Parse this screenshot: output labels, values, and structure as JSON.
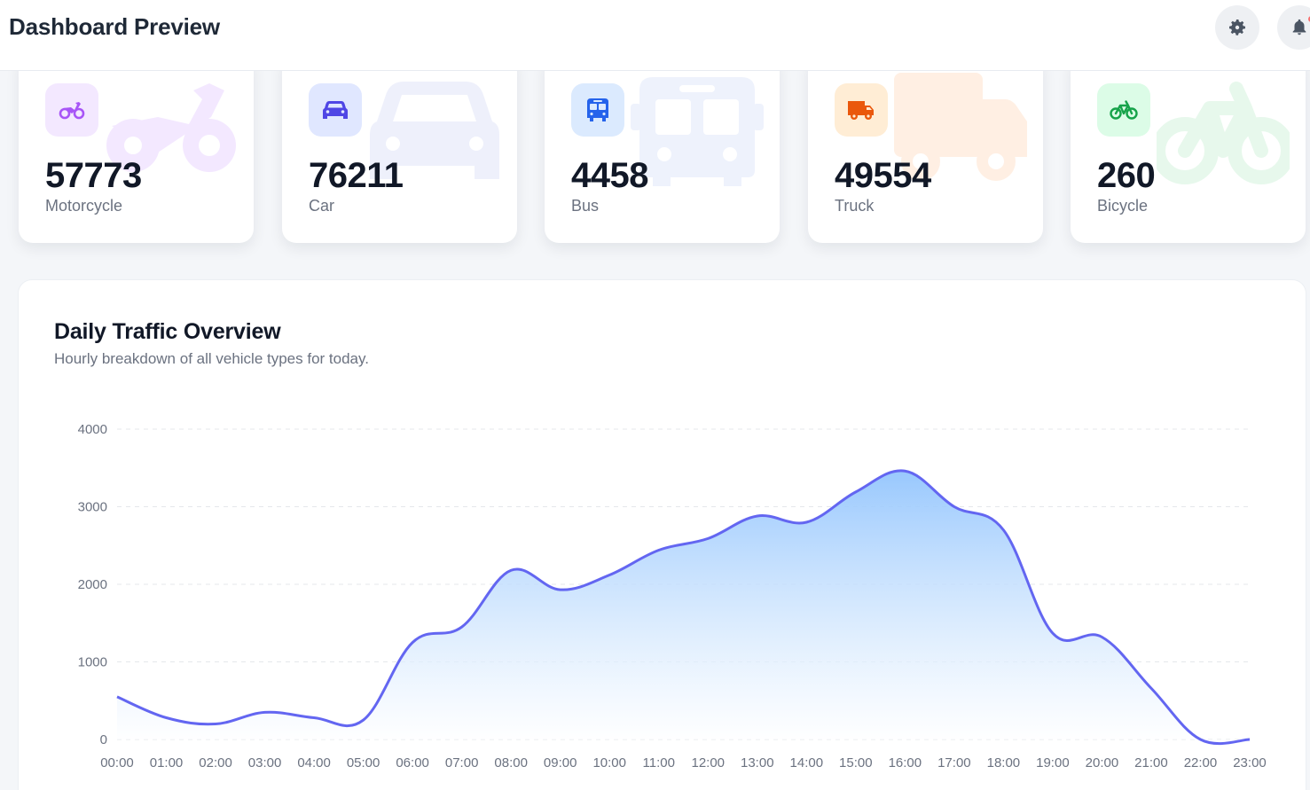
{
  "header": {
    "title": "Dashboard Preview",
    "settings_icon": "gear-icon",
    "notifications_icon": "bell-icon"
  },
  "stats": [
    {
      "count": "57773",
      "label": "Motorcycle",
      "icon": "motorcycle-icon",
      "accent": "#a855f7",
      "tint": "#f3e8ff"
    },
    {
      "count": "76211",
      "label": "Car",
      "icon": "car-icon",
      "accent": "#4f46e5",
      "tint": "#e0e7ff"
    },
    {
      "count": "4458",
      "label": "Bus",
      "icon": "bus-icon",
      "accent": "#2563eb",
      "tint": "#dbeafe"
    },
    {
      "count": "49554",
      "label": "Truck",
      "icon": "truck-icon",
      "accent": "#ea580c",
      "tint": "#ffedd5"
    },
    {
      "count": "260",
      "label": "Bicycle",
      "icon": "bicycle-icon",
      "accent": "#16a34a",
      "tint": "#dcfce7"
    }
  ],
  "chart": {
    "title": "Daily Traffic Overview",
    "subtitle": "Hourly breakdown of all vehicle types for today."
  },
  "chart_data": {
    "type": "area",
    "title": "Daily Traffic Overview",
    "subtitle": "Hourly breakdown of all vehicle types for today.",
    "x": [
      "00:00",
      "01:00",
      "02:00",
      "03:00",
      "04:00",
      "05:00",
      "06:00",
      "07:00",
      "08:00",
      "09:00",
      "10:00",
      "11:00",
      "12:00",
      "13:00",
      "14:00",
      "15:00",
      "16:00",
      "17:00",
      "18:00",
      "19:00",
      "20:00",
      "21:00",
      "22:00",
      "23:00"
    ],
    "series": [
      {
        "values": [
          550,
          280,
          200,
          350,
          280,
          250,
          1250,
          1450,
          2180,
          1930,
          2120,
          2440,
          2590,
          2880,
          2800,
          3190,
          3460,
          3000,
          2700,
          1370,
          1320,
          660,
          0,
          0
        ],
        "color": "#6366f1"
      }
    ],
    "ylim": [
      0,
      4000
    ],
    "yticks": [
      0,
      1000,
      2000,
      3000,
      4000
    ],
    "grid": true,
    "area_fill": [
      "#93c5fd",
      "#ffffff"
    ]
  }
}
